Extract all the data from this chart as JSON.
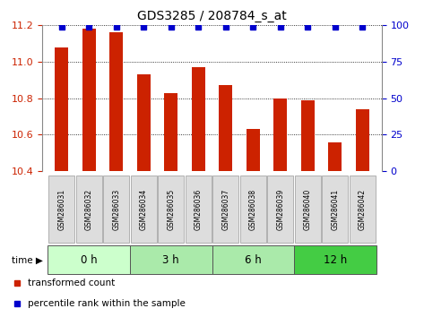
{
  "title": "GDS3285 / 208784_s_at",
  "samples": [
    "GSM286031",
    "GSM286032",
    "GSM286033",
    "GSM286034",
    "GSM286035",
    "GSM286036",
    "GSM286037",
    "GSM286038",
    "GSM286039",
    "GSM286040",
    "GSM286041",
    "GSM286042"
  ],
  "bar_values": [
    11.08,
    11.18,
    11.16,
    10.93,
    10.83,
    10.97,
    10.87,
    10.63,
    10.8,
    10.79,
    10.56,
    10.74
  ],
  "percentile_values": [
    99,
    99,
    99,
    99,
    99,
    99,
    99,
    99,
    99,
    99,
    99,
    99
  ],
  "bar_color": "#cc2200",
  "percentile_color": "#0000cc",
  "ylim_left": [
    10.4,
    11.2
  ],
  "ylim_right": [
    0,
    100
  ],
  "yticks_left": [
    10.4,
    10.6,
    10.8,
    11.0,
    11.2
  ],
  "yticks_right": [
    0,
    25,
    50,
    75,
    100
  ],
  "time_group_spans": [
    [
      0,
      3,
      "0 h",
      "#ccffcc"
    ],
    [
      3,
      6,
      "3 h",
      "#aaeaaa"
    ],
    [
      6,
      9,
      "6 h",
      "#aaeaaa"
    ],
    [
      9,
      12,
      "12 h",
      "#44cc44"
    ]
  ],
  "legend_bar_label": "transformed count",
  "legend_pct_label": "percentile rank within the sample",
  "bar_width": 0.5,
  "sample_box_color": "#dddddd",
  "spine_color": "#888888"
}
